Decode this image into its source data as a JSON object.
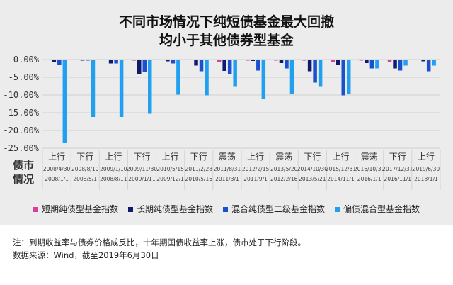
{
  "chart_data": {
    "type": "bar",
    "title": [
      "不同市场情况下纯短债基金最大回撤",
      "均小于其他债券型基金"
    ],
    "ylim": [
      -25,
      0
    ],
    "yticks": [
      "0.00%",
      "-5.00%",
      "-10.00%",
      "-15.00%",
      "-20.00%",
      "-25.00%"
    ],
    "row_label": [
      "债市",
      "情况"
    ],
    "categories": [
      {
        "market": "上行",
        "end": "2008/4/30",
        "start": "2008/1/1"
      },
      {
        "market": "下行",
        "end": "2008/8/10",
        "start": "2008/5/1"
      },
      {
        "market": "上行",
        "end": "2009/1/10",
        "start": "2008/8/11"
      },
      {
        "market": "下行",
        "end": "2009/11/30",
        "start": "2009/1/11"
      },
      {
        "market": "上行",
        "end": "2010/5/15",
        "start": "2009/12/1"
      },
      {
        "market": "下行",
        "end": "2011/2/28",
        "start": "2010/5/16"
      },
      {
        "market": "震荡",
        "end": "2011/8/31",
        "start": "2011/3/1"
      },
      {
        "market": "上行",
        "end": "2012/2/15",
        "start": "2011/9/1"
      },
      {
        "market": "震荡",
        "end": "2013/5/20",
        "start": "2012/2/16"
      },
      {
        "market": "下行",
        "end": "2014/10/30",
        "start": "2013/5/21"
      },
      {
        "market": "上行",
        "end": "2015/12/31",
        "start": "2014/11/1"
      },
      {
        "market": "震荡",
        "end": "2016/10/30",
        "start": "2016/1/1"
      },
      {
        "market": "下行",
        "end": "2017/12/31",
        "start": "2016/11/1"
      },
      {
        "market": "上行",
        "end": "2019/6/30",
        "start": "2018/1/1"
      }
    ],
    "series": [
      {
        "name": "短期纯债型基金指数",
        "color": "#d63ea0",
        "values": [
          0,
          0,
          0,
          -0.2,
          0,
          0,
          -0.6,
          -0.3,
          -0.3,
          -0.3,
          -0.8,
          -0.3,
          -0.8,
          0
        ]
      },
      {
        "name": "长期纯债型基金指数",
        "color": "#0f1a6b",
        "values": [
          -0.6,
          -0.3,
          -1.1,
          -4.0,
          -0.5,
          -1.7,
          -3.2,
          -0.4,
          -1.0,
          -3.3,
          -1.4,
          -1.0,
          -2.5,
          -0.5
        ]
      },
      {
        "name": "混合纯债型二级基金指数",
        "color": "#1a4fd0",
        "values": [
          -1.5,
          -0.3,
          -1.1,
          -3.5,
          -1.1,
          -3.3,
          -4.2,
          -3.1,
          -2.5,
          -6.5,
          -10.1,
          -2.5,
          -3.1,
          -3.3
        ]
      },
      {
        "name": "偏债混合型基金指数",
        "color": "#22a0f0",
        "values": [
          -23.5,
          -16.2,
          -16.2,
          -15.3,
          -9.9,
          -10.1,
          -7.7,
          -11.0,
          -9.6,
          -7.7,
          -9.6,
          -2.5,
          -1.7,
          -1.7
        ]
      }
    ],
    "legend": "bottom"
  },
  "notes": [
    "注：到期收益率与债券价格成反比，十年期国债收益率上涨，债市处于下行阶段。",
    "数据来源：Wind，截至2019年6月30日"
  ]
}
